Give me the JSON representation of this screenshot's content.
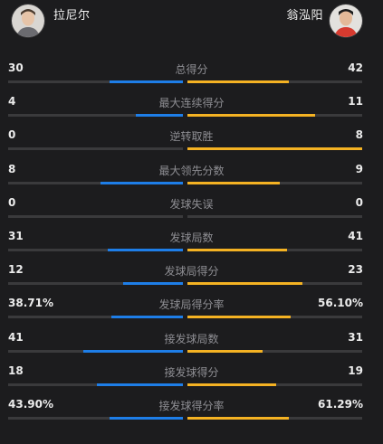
{
  "players": {
    "left": {
      "name": "拉尼尔",
      "avatar": "player-avatar"
    },
    "right": {
      "name": "翁泓阳",
      "avatar": "player-avatar"
    }
  },
  "colors": {
    "left": "#1e7ee8",
    "right": "#f4b223",
    "track": "#3a3a3c"
  },
  "stats": [
    {
      "label": "总得分",
      "left": "30",
      "right": "42",
      "left_share": 0.42,
      "right_share": 0.58
    },
    {
      "label": "最大连续得分",
      "left": "4",
      "right": "11",
      "left_share": 0.27,
      "right_share": 0.73
    },
    {
      "label": "逆转取胜",
      "left": "0",
      "right": "8",
      "left_share": 0.0,
      "right_share": 1.0
    },
    {
      "label": "最大领先分数",
      "left": "8",
      "right": "9",
      "left_share": 0.47,
      "right_share": 0.53
    },
    {
      "label": "发球失误",
      "left": "0",
      "right": "0",
      "left_share": 0.0,
      "right_share": 0.0
    },
    {
      "label": "发球局数",
      "left": "31",
      "right": "41",
      "left_share": 0.43,
      "right_share": 0.57
    },
    {
      "label": "发球局得分",
      "left": "12",
      "right": "23",
      "left_share": 0.34,
      "right_share": 0.66
    },
    {
      "label": "发球局得分率",
      "left": "38.71%",
      "right": "56.10%",
      "left_share": 0.41,
      "right_share": 0.59
    },
    {
      "label": "接发球局数",
      "left": "41",
      "right": "31",
      "left_share": 0.57,
      "right_share": 0.43
    },
    {
      "label": "接发球得分",
      "left": "18",
      "right": "19",
      "left_share": 0.49,
      "right_share": 0.51
    },
    {
      "label": "接发球得分率",
      "left": "43.90%",
      "right": "61.29%",
      "left_share": 0.42,
      "right_share": 0.58
    }
  ]
}
